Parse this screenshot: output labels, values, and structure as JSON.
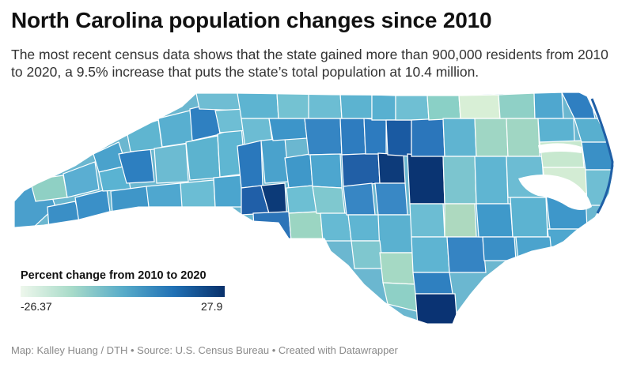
{
  "header": {
    "title": "North Carolina population changes since 2010",
    "subtitle": "The most recent census data shows that the state gained more than 900,000 residents from 2010 to 2020, a 9.5% increase that puts the state’s total population at 10.4 million."
  },
  "legend": {
    "title": "Percent change from 2010 to 2020",
    "min_label": "-26.37",
    "max_label": "27.9",
    "min": -26.37,
    "max": 27.9,
    "color_low": "#eef7ec",
    "color_mid": "#58acc9",
    "color_high": "#08306b"
  },
  "footer": {
    "credit": "Map: Kalley Huang / DTH • Source: U.S. Census Bureau • Created with Datawrapper"
  },
  "map": {
    "state_color": "#6bb7d0",
    "border_color": "#ffffff"
  }
}
